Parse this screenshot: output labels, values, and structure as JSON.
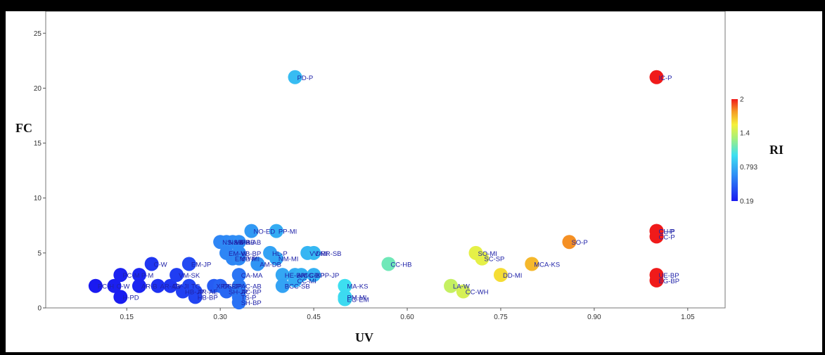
{
  "chart_data": {
    "type": "scatter",
    "xlabel": "UV",
    "ylabel": "FC",
    "colorbar_label": "RI",
    "xlim": [
      0.02,
      1.11
    ],
    "ylim": [
      0,
      27
    ],
    "x_ticks": [
      "0.15",
      "0.30",
      "0.45",
      "0.60",
      "0.75",
      "0.90",
      "1.05"
    ],
    "y_ticks": [
      "0",
      "5",
      "10",
      "15",
      "20",
      "25"
    ],
    "colorbar_ticks": [
      "2",
      "1.4",
      "0.793",
      "0.19"
    ],
    "colorbar_range": [
      0.19,
      2
    ],
    "grid": false,
    "points": [
      {
        "label": "PC-H",
        "x": 0.1,
        "y": 2,
        "ri": 0.19
      },
      {
        "label": "PC-M",
        "x": 0.14,
        "y": 3,
        "ri": 0.22
      },
      {
        "label": "C-W",
        "x": 0.13,
        "y": 2,
        "ri": 0.21
      },
      {
        "label": "H-PD",
        "x": 0.14,
        "y": 1,
        "ri": 0.2
      },
      {
        "label": "P-M",
        "x": 0.17,
        "y": 3,
        "ri": 0.24
      },
      {
        "label": "AR-B",
        "x": 0.17,
        "y": 2,
        "ri": 0.23
      },
      {
        "label": "C-W",
        "x": 0.19,
        "y": 4,
        "ri": 0.3
      },
      {
        "label": "AR-AB",
        "x": 0.2,
        "y": 2,
        "ri": 0.28
      },
      {
        "label": "CV-JI",
        "x": 0.22,
        "y": 2,
        "ri": 0.3
      },
      {
        "label": "VM-SK",
        "x": 0.23,
        "y": 3,
        "ri": 0.33
      },
      {
        "label": "EM-JP",
        "x": 0.25,
        "y": 4,
        "ri": 0.38
      },
      {
        "label": "HB-JP",
        "x": 0.24,
        "y": 1.5,
        "ri": 0.34
      },
      {
        "label": "TC",
        "x": 0.25,
        "y": 2,
        "ri": 0.36
      },
      {
        "label": "AR-AE",
        "x": 0.26,
        "y": 1.5,
        "ri": 0.37
      },
      {
        "label": "HB-BP",
        "x": 0.26,
        "y": 1,
        "ri": 0.36
      },
      {
        "label": "XPP-BP",
        "x": 0.29,
        "y": 2,
        "ri": 0.45
      },
      {
        "label": "CC-JP",
        "x": 0.3,
        "y": 2,
        "ri": 0.48
      },
      {
        "label": "CA-MA",
        "x": 0.33,
        "y": 3,
        "ri": 0.55
      },
      {
        "label": "SH-JP",
        "x": 0.31,
        "y": 1.5,
        "ri": 0.5
      },
      {
        "label": "AC-BP",
        "x": 0.33,
        "y": 1.5,
        "ri": 0.55
      },
      {
        "label": "AC-AB",
        "x": 0.33,
        "y": 2,
        "ri": 0.56
      },
      {
        "label": "TS-P",
        "x": 0.33,
        "y": 1,
        "ri": 0.55
      },
      {
        "label": "SH-BP",
        "x": 0.33,
        "y": 0.5,
        "ri": 0.54
      },
      {
        "label": "NS-AB",
        "x": 0.3,
        "y": 6,
        "ri": 0.62
      },
      {
        "label": "NS-MR",
        "x": 0.31,
        "y": 6,
        "ri": 0.63
      },
      {
        "label": "VB-AB",
        "x": 0.32,
        "y": 6,
        "ri": 0.64
      },
      {
        "label": "PB-AB",
        "x": 0.33,
        "y": 6,
        "ri": 0.65
      },
      {
        "label": "EM-W",
        "x": 0.31,
        "y": 5,
        "ri": 0.62
      },
      {
        "label": "VB-BP",
        "x": 0.33,
        "y": 5,
        "ri": 0.64
      },
      {
        "label": "EM-YP",
        "x": 0.32,
        "y": 4.5,
        "ri": 0.62
      },
      {
        "label": "VB-MI",
        "x": 0.33,
        "y": 4.5,
        "ri": 0.63
      },
      {
        "label": "NO-ED",
        "x": 0.35,
        "y": 7,
        "ri": 0.7
      },
      {
        "label": "AM-DB",
        "x": 0.36,
        "y": 4,
        "ri": 0.68
      },
      {
        "label": "HL-P",
        "x": 0.38,
        "y": 5,
        "ri": 0.74
      },
      {
        "label": "NM-MI",
        "x": 0.39,
        "y": 4.5,
        "ri": 0.75
      },
      {
        "label": "PP-MI",
        "x": 0.39,
        "y": 7,
        "ri": 0.78
      },
      {
        "label": "PD-P",
        "x": 0.42,
        "y": 21,
        "ri": 0.85
      },
      {
        "label": "VV-MI",
        "x": 0.44,
        "y": 5,
        "ri": 0.82
      },
      {
        "label": "DRR-SB",
        "x": 0.45,
        "y": 5,
        "ri": 0.83
      },
      {
        "label": "XPP-JP",
        "x": 0.45,
        "y": 3,
        "ri": 0.8
      },
      {
        "label": "AM-CE",
        "x": 0.42,
        "y": 3,
        "ri": 0.78
      },
      {
        "label": "HE-BP",
        "x": 0.4,
        "y": 3,
        "ri": 0.76
      },
      {
        "label": "CG-BP",
        "x": 0.43,
        "y": 3,
        "ri": 0.8
      },
      {
        "label": "BCC-SB",
        "x": 0.4,
        "y": 2,
        "ri": 0.74
      },
      {
        "label": "CC-MI",
        "x": 0.42,
        "y": 2.5,
        "ri": 0.77
      },
      {
        "label": "MA-KS",
        "x": 0.5,
        "y": 2,
        "ri": 1.0
      },
      {
        "label": "PM-MI",
        "x": 0.5,
        "y": 1,
        "ri": 0.98
      },
      {
        "label": "EG-EM",
        "x": 0.5,
        "y": 0.8,
        "ri": 0.98
      },
      {
        "label": "CC-HB",
        "x": 0.57,
        "y": 4,
        "ri": 1.15
      },
      {
        "label": "LA-W",
        "x": 0.67,
        "y": 2,
        "ri": 1.4
      },
      {
        "label": "CC-WH",
        "x": 0.69,
        "y": 1.5,
        "ri": 1.45
      },
      {
        "label": "SO-MI",
        "x": 0.71,
        "y": 5,
        "ri": 1.5
      },
      {
        "label": "SC-SP",
        "x": 0.72,
        "y": 4.5,
        "ri": 1.5
      },
      {
        "label": "DD-MI",
        "x": 0.75,
        "y": 3,
        "ri": 1.6
      },
      {
        "label": "MCA-KS",
        "x": 0.8,
        "y": 4,
        "ri": 1.7
      },
      {
        "label": "SO-P",
        "x": 0.86,
        "y": 6,
        "ri": 1.8
      },
      {
        "label": "CL-P",
        "x": 1.0,
        "y": 7,
        "ri": 2.0
      },
      {
        "label": "CH-P",
        "x": 1.0,
        "y": 7,
        "ri": 2.0
      },
      {
        "label": "CC-P",
        "x": 1.0,
        "y": 6.5,
        "ri": 2.0
      },
      {
        "label": "UE-BP",
        "x": 1.0,
        "y": 3,
        "ri": 2.0
      },
      {
        "label": "EG-BP",
        "x": 1.0,
        "y": 2.5,
        "ri": 2.0
      },
      {
        "label": "IC-P",
        "x": 1.0,
        "y": 21,
        "ri": 2.0
      }
    ]
  }
}
